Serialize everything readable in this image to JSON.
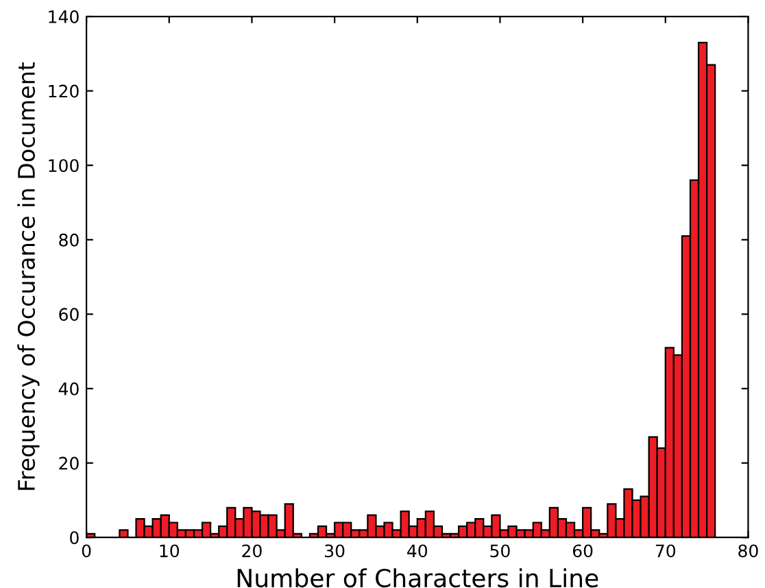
{
  "chart_data": {
    "type": "histogram",
    "xlabel": "Number of Characters in Line",
    "ylabel": "Frequency of Occurance in Document",
    "bins": [
      0,
      1,
      2,
      3,
      4,
      5,
      6,
      7,
      8,
      9,
      10,
      11,
      12,
      13,
      14,
      15,
      16,
      17,
      18,
      19,
      20,
      21,
      22,
      23,
      24,
      25,
      26,
      27,
      28,
      29,
      30,
      31,
      32,
      33,
      34,
      35,
      36,
      37,
      38,
      39,
      40,
      41,
      42,
      43,
      44,
      45,
      46,
      47,
      48,
      49,
      50,
      51,
      52,
      53,
      54,
      55,
      56,
      57,
      58,
      59,
      60,
      61,
      62,
      63,
      64,
      65,
      66,
      67,
      68,
      69,
      70,
      71,
      72,
      73,
      74,
      75,
      76
    ],
    "values": [
      1,
      0,
      0,
      0,
      2,
      0,
      5,
      3,
      5,
      6,
      4,
      2,
      2,
      2,
      4,
      1,
      3,
      8,
      5,
      8,
      7,
      6,
      6,
      2,
      9,
      1,
      0,
      1,
      3,
      1,
      4,
      4,
      2,
      2,
      6,
      3,
      4,
      2,
      7,
      3,
      5,
      7,
      3,
      1,
      1,
      3,
      4,
      5,
      3,
      6,
      2,
      3,
      2,
      2,
      4,
      2,
      8,
      5,
      4,
      2,
      8,
      2,
      1,
      9,
      5,
      13,
      10,
      11,
      27,
      24,
      51,
      49,
      81,
      96,
      133,
      127
    ],
    "color": "#ee1c25",
    "xlim": [
      0,
      80
    ],
    "xticks": [
      0,
      10,
      20,
      30,
      40,
      50,
      60,
      70,
      80
    ],
    "ylim": [
      0,
      140
    ],
    "yticks": [
      0,
      20,
      40,
      60,
      80,
      100,
      120,
      140
    ],
    "grid": false
  }
}
